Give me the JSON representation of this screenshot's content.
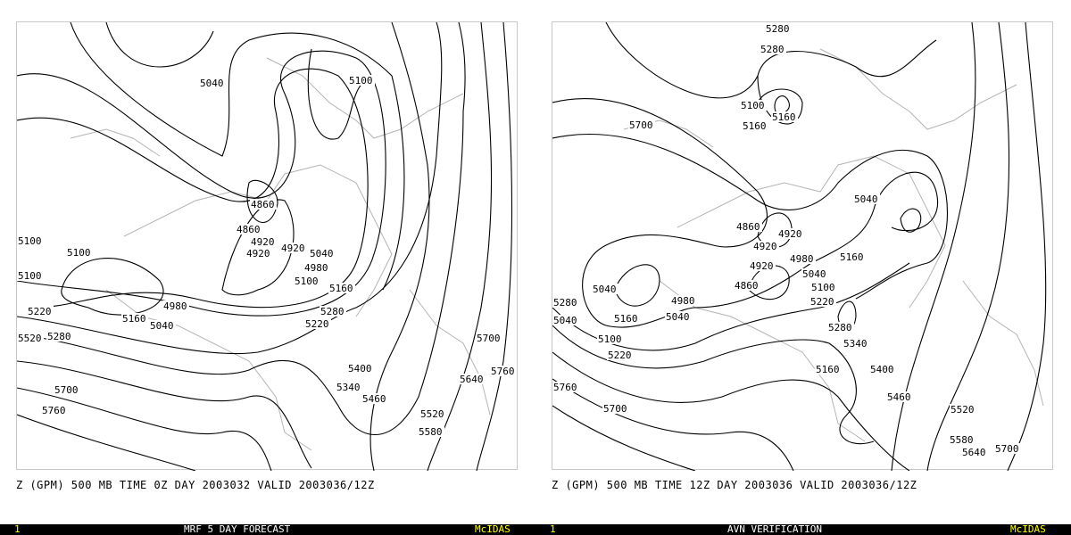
{
  "colors": {
    "contour": "#000000",
    "coastline": "#b4b4b4",
    "status_bar": "#000000",
    "status_accent": "#ffff00",
    "status_title": "#ffffff"
  },
  "panels": [
    {
      "caption": "Z (GPM) 500 MB TIME 0Z DAY 2003032 VALID 2003036/12Z",
      "frame_number": "1",
      "title": "MRF 5 DAY FORECAST",
      "brand": "McIDAS",
      "contour_labels": [
        "5040",
        "5100",
        "4860",
        "4860",
        "4920",
        "4920",
        "4920",
        "4980",
        "5040",
        "5100",
        "5160",
        "5100",
        "5220",
        "4980",
        "5040",
        "5160",
        "5280",
        "5220",
        "5520",
        "5280",
        "5400",
        "5340",
        "5460",
        "5700",
        "5760",
        "5640",
        "5700",
        "5760",
        "5520",
        "5580",
        "5100",
        "5100"
      ]
    },
    {
      "caption": "Z (GPM) 500 MB TIME 12Z DAY 2003036 VALID 2003036/12Z",
      "frame_number": "1",
      "title": "AVN VERIFICATION",
      "brand": "McIDAS",
      "contour_labels": [
        "5280",
        "5280",
        "5700",
        "5100",
        "5160",
        "5160",
        "5040",
        "4860",
        "4920",
        "4920",
        "4980",
        "5040",
        "5100",
        "5160",
        "4920",
        "4860",
        "5040",
        "4980",
        "5040",
        "5160",
        "5100",
        "5220",
        "5220",
        "5280",
        "5340",
        "5160",
        "5400",
        "5460",
        "5760",
        "5700",
        "5520",
        "5580",
        "5640",
        "5700",
        "5280",
        "5040"
      ]
    }
  ]
}
